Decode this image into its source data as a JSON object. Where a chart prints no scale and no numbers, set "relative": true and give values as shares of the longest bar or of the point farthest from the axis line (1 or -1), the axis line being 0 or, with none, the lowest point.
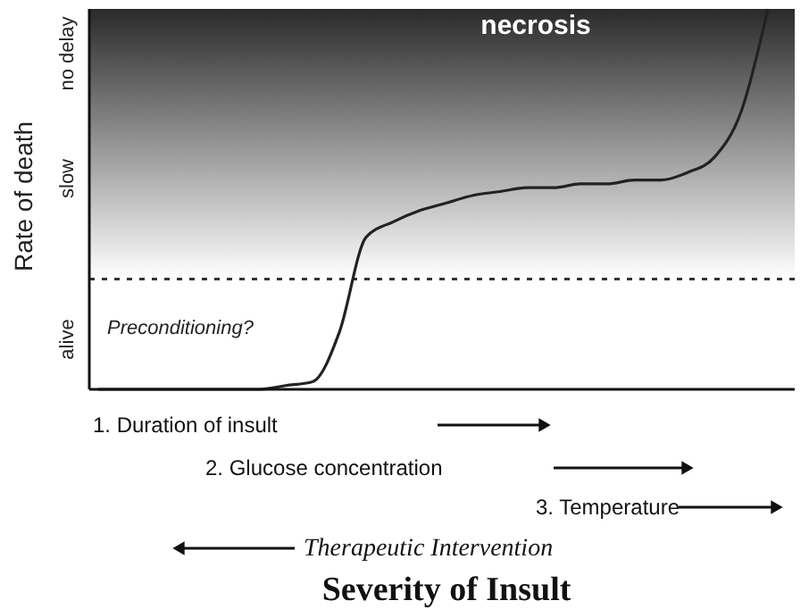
{
  "chart_data": {
    "type": "line",
    "relative": true,
    "ylabel": "Rate of death",
    "categories": [
      null,
      null,
      null,
      null,
      null,
      null,
      null,
      null,
      null,
      null,
      null,
      null,
      null,
      null,
      null,
      null,
      null,
      null,
      null,
      null,
      null,
      null,
      null,
      null,
      null,
      null
    ],
    "series": [
      {
        "color": "#222222",
        "values": [
          0,
          0,
          0,
          0,
          0,
          0,
          0,
          0.01,
          0.02,
          0.15,
          0.4,
          0.44,
          0.47,
          0.49,
          0.51,
          0.52,
          0.53,
          0.53,
          0.54,
          0.54,
          0.55,
          0.55,
          0.57,
          0.61,
          0.73,
          1.0
        ]
      }
    ],
    "ref_lines": [
      {
        "axis": "y",
        "value": 0.29,
        "line_style": "dotted",
        "color": "#333333"
      }
    ],
    "bands": [
      {
        "axis": "y",
        "from": 0.29,
        "to": 1,
        "color": "#2a2a2a"
      }
    ],
    "annotations": [
      "necrosis",
      "Preconditioning?",
      "alive",
      "slow",
      "no delay",
      "1. Duration of insult",
      "2. Glucose concentration",
      "3. Temperature",
      "Therapeutic Intervention",
      "Severity of Insult"
    ]
  }
}
